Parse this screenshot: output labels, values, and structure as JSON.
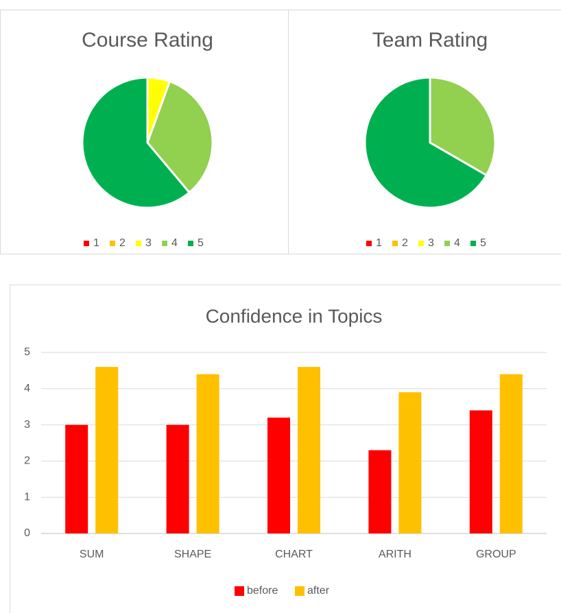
{
  "chart_data": [
    {
      "type": "pie",
      "title": "Course Rating",
      "categories": [
        "1",
        "2",
        "3",
        "4",
        "5"
      ],
      "values": [
        0,
        0,
        1,
        6,
        11
      ],
      "colors": [
        "#ff0000",
        "#ffc000",
        "#ffff00",
        "#92d050",
        "#00b050"
      ],
      "legend": "bottom"
    },
    {
      "type": "pie",
      "title": "Team Rating",
      "categories": [
        "1",
        "2",
        "3",
        "4",
        "5"
      ],
      "values": [
        0,
        0,
        0,
        1,
        2
      ],
      "colors": [
        "#ff0000",
        "#ffc000",
        "#ffff00",
        "#92d050",
        "#00b050"
      ],
      "legend": "bottom"
    },
    {
      "type": "bar",
      "title": "Confidence in Topics",
      "categories": [
        "SUM",
        "SHAPE",
        "CHART",
        "ARITH",
        "GROUP"
      ],
      "series": [
        {
          "name": "before",
          "color": "#ff0000",
          "values": [
            3,
            3,
            3.2,
            2.3,
            3.4
          ]
        },
        {
          "name": "after",
          "color": "#ffc000",
          "values": [
            4.6,
            4.4,
            4.6,
            3.9,
            4.4
          ]
        }
      ],
      "ylim": [
        0,
        5
      ],
      "yticks": [
        0,
        1,
        2,
        3,
        4,
        5
      ],
      "grid": true,
      "legend": "bottom"
    }
  ]
}
